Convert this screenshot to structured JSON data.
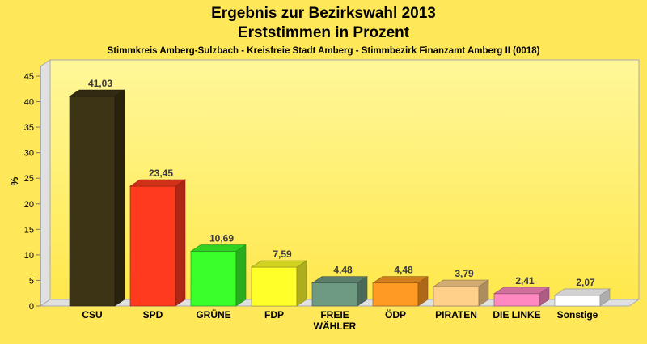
{
  "chart_data": {
    "type": "bar",
    "title": "Ergebnis zur Bezirkswahl 2013",
    "title_line2": "Erststimmen in Prozent",
    "subtitle": "Stimmkreis Amberg-Sulzbach - Kreisfreie Stadt Amberg - Stimmbezirk Finanzamt Amberg II (0018)",
    "ylabel": "%",
    "xlabel": "",
    "ylim": [
      0,
      45
    ],
    "yticks": [
      0,
      5,
      10,
      15,
      20,
      25,
      30,
      35,
      40,
      45
    ],
    "grid": false,
    "categories": [
      {
        "label": "CSU",
        "value": 41.03,
        "value_label": "41,03",
        "color": "#3d3315"
      },
      {
        "label": "SPD",
        "value": 23.45,
        "value_label": "23,45",
        "color": "#ff3a1e"
      },
      {
        "label": "GRÜNE",
        "value": 10.69,
        "value_label": "10,69",
        "color": "#3aff2a"
      },
      {
        "label": "FDP",
        "value": 7.59,
        "value_label": "7,59",
        "color": "#ffff2a"
      },
      {
        "label": "FREIE WÄHLER",
        "label_lines": [
          "FREIE",
          "WÄHLER"
        ],
        "value": 4.48,
        "value_label": "4,48",
        "color": "#6f9a82"
      },
      {
        "label": "ÖDP",
        "value": 4.48,
        "value_label": "4,48",
        "color": "#ff9a22"
      },
      {
        "label": "PIRATEN",
        "value": 3.79,
        "value_label": "3,79",
        "color": "#ffd08a"
      },
      {
        "label": "DIE LINKE",
        "value": 2.41,
        "value_label": "2,41",
        "color": "#ff88c0"
      },
      {
        "label": "Sonstige",
        "value": 2.07,
        "value_label": "2,07",
        "color": "#ffffff"
      }
    ]
  }
}
